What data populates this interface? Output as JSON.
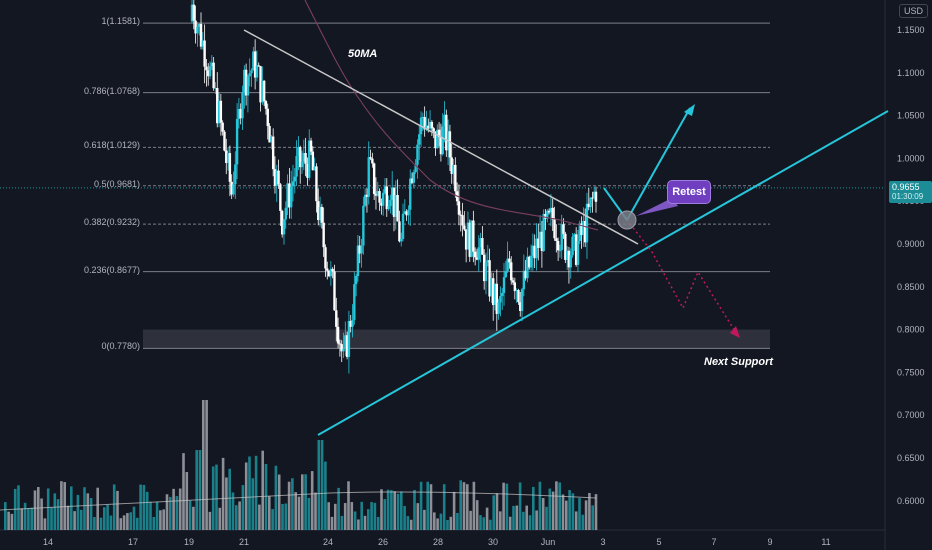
{
  "currency_badge": "USD",
  "current_price": "0.9655",
  "countdown": "01:30:09",
  "price_axis": [
    "1.1500",
    "1.1000",
    "1.0500",
    "1.0000",
    "0.9500",
    "0.9000",
    "0.8500",
    "0.8000",
    "0.7500",
    "0.7000",
    "0.6500",
    "0.6000"
  ],
  "time_axis": [
    "14",
    "17",
    "19",
    "21",
    "24",
    "26",
    "28",
    "30",
    "Jun",
    "3",
    "5",
    "7",
    "9",
    "11"
  ],
  "fib_levels": [
    {
      "label": "1(1.1581)",
      "price": 1.1581
    },
    {
      "label": "0.786(1.0768)",
      "price": 1.0768
    },
    {
      "label": "0.618(1.0129)",
      "price": 1.0129
    },
    {
      "label": "0.5(0.9681)",
      "price": 0.9681
    },
    {
      "label": "0.382(0.9232)",
      "price": 0.9232
    },
    {
      "label": "0.236(0.8677)",
      "price": 0.8677
    },
    {
      "label": "0(0.7780)",
      "price": 0.778
    }
  ],
  "annotations": {
    "ma_label": "50MA",
    "retest_label": "Retest",
    "support_label": "Next Support"
  },
  "colors": {
    "background": "#131722",
    "bull_candle": "#26c6da",
    "bear_candle": "#ffffff",
    "trendline": "#26c6da",
    "resistance_line": "#c8c8c8",
    "projection": "#c2185b",
    "ma_line": "#7b3f5e",
    "retest_box": "#7e57c2"
  }
}
